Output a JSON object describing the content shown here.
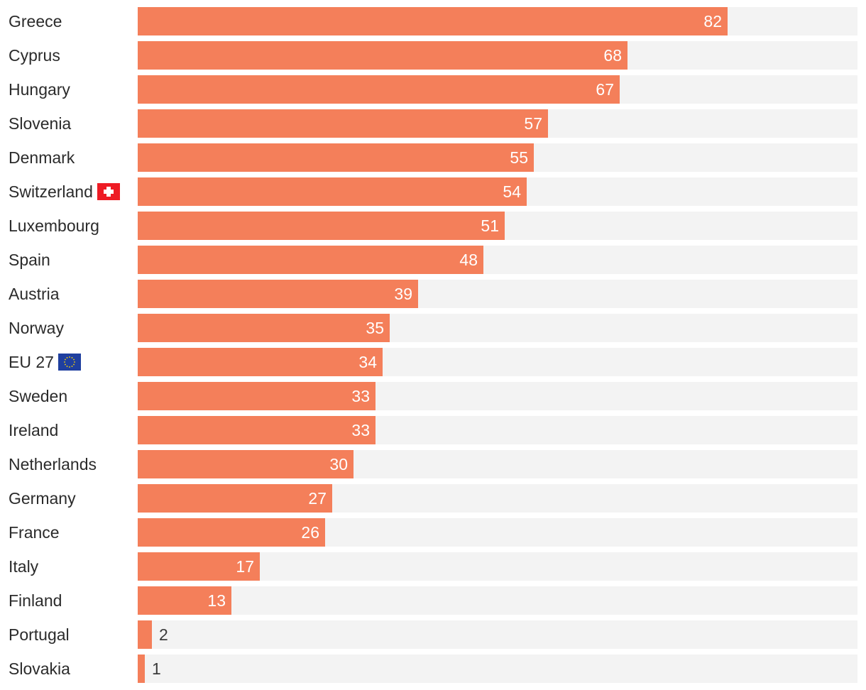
{
  "chart_data": {
    "type": "bar",
    "orientation": "horizontal",
    "title": "",
    "xlabel": "",
    "ylabel": "",
    "xlim": [
      0,
      100
    ],
    "bar_color": "#f47f5a",
    "track_color": "#f3f3f3",
    "categories": [
      "Greece",
      "Cyprus",
      "Hungary",
      "Slovenia",
      "Denmark",
      "Switzerland",
      "Luxembourg",
      "Spain",
      "Austria",
      "Norway",
      "EU 27",
      "Sweden",
      "Ireland",
      "Netherlands",
      "Germany",
      "France",
      "Italy",
      "Finland",
      "Portugal",
      "Slovakia"
    ],
    "values": [
      82,
      68,
      67,
      57,
      55,
      54,
      51,
      48,
      39,
      35,
      34,
      33,
      33,
      30,
      27,
      26,
      17,
      13,
      2,
      1
    ],
    "flags": {
      "Switzerland": "swiss-flag-icon",
      "EU 27": "eu-flag-icon"
    }
  }
}
